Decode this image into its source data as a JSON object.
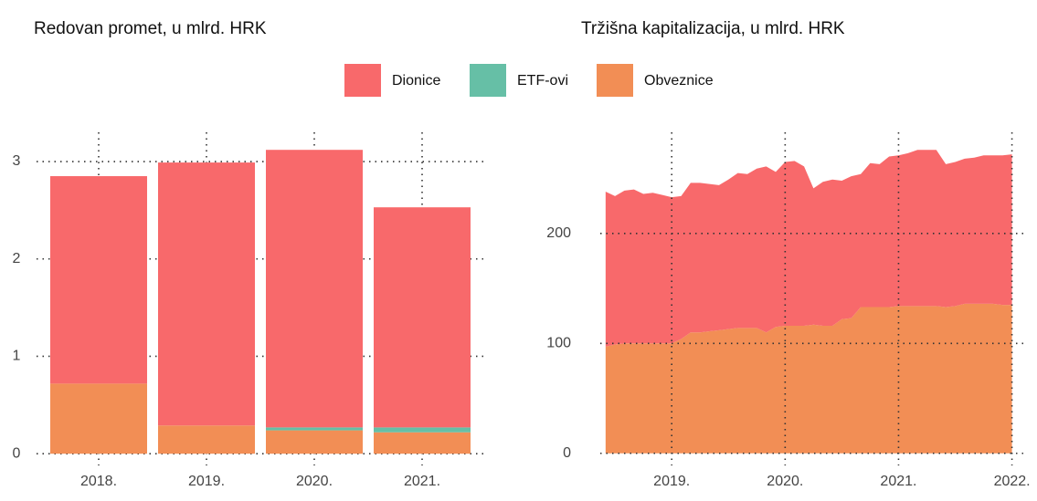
{
  "chart_data": [
    {
      "type": "bar",
      "title": "Redovan promet, u mlrd. HRK",
      "categories": [
        "2018.",
        "2019.",
        "2020.",
        "2021."
      ],
      "series": [
        {
          "name": "Dionice",
          "color": "#F8696B",
          "values": [
            2.13,
            2.7,
            2.85,
            2.26
          ]
        },
        {
          "name": "ETF-ovi",
          "color": "#66BFA6",
          "values": [
            0,
            0,
            0.03,
            0.05
          ]
        },
        {
          "name": "Obveznice",
          "color": "#F28E55",
          "values": [
            0.72,
            0.29,
            0.24,
            0.22
          ]
        }
      ],
      "ylim": [
        -0.12,
        3.3
      ],
      "yticks": [
        0,
        1,
        2,
        3
      ],
      "grid": true
    },
    {
      "type": "area",
      "title": "Tržišna kapitalizacija, u mlrd. HRK",
      "x": [
        2018.417,
        2018.5,
        2018.583,
        2018.667,
        2018.75,
        2018.833,
        2018.917,
        2019,
        2019.083,
        2019.167,
        2019.25,
        2019.333,
        2019.417,
        2019.5,
        2019.583,
        2019.667,
        2019.75,
        2019.833,
        2019.917,
        2020,
        2020.083,
        2020.167,
        2020.25,
        2020.333,
        2020.417,
        2020.5,
        2020.583,
        2020.667,
        2020.75,
        2020.833,
        2020.917,
        2021,
        2021.083,
        2021.167,
        2021.25,
        2021.333,
        2021.417,
        2021.5,
        2021.583,
        2021.667,
        2021.75,
        2021.833,
        2021.917,
        2022
      ],
      "series": [
        {
          "name": "Dionice",
          "color": "#F8696B",
          "values": [
            141,
            135,
            139,
            140,
            136,
            137,
            135,
            133,
            130,
            136,
            136,
            134,
            132,
            136,
            141,
            140,
            145,
            151,
            141,
            149,
            150,
            145,
            124,
            131,
            133,
            126,
            129,
            121,
            131,
            130,
            137,
            137,
            139,
            142,
            142,
            142,
            130,
            131,
            132,
            133,
            135,
            135,
            136,
            137
          ]
        },
        {
          "name": "Obveznice",
          "color": "#F28E55",
          "values": [
            97,
            99,
            100,
            100,
            100,
            100,
            100,
            100,
            104,
            110,
            110,
            111,
            112,
            113,
            114,
            114,
            114,
            110,
            115,
            116,
            116,
            116,
            117,
            116,
            116,
            122,
            123,
            133,
            133,
            133,
            133,
            134,
            134,
            134,
            134,
            134,
            133,
            134,
            136,
            136,
            136,
            136,
            135,
            135
          ]
        }
      ],
      "xlim": [
        2018.37,
        2022.1
      ],
      "xticks": [
        {
          "value": 2019,
          "label": "2019."
        },
        {
          "value": 2020,
          "label": "2020."
        },
        {
          "value": 2021,
          "label": "2021."
        },
        {
          "value": 2022,
          "label": "2022."
        }
      ],
      "ylim": [
        -11,
        292
      ],
      "yticks": [
        0,
        100,
        200
      ],
      "grid": true
    }
  ]
}
